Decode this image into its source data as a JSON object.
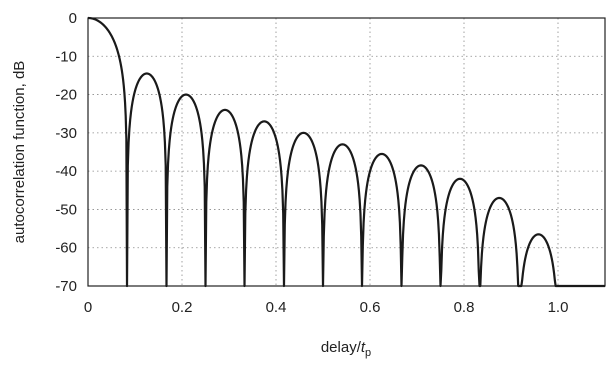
{
  "chart_data": {
    "type": "line",
    "title": "",
    "ylabel": "autocorrelation function, dB",
    "xlabel_main": "delay/",
    "xlabel_var": "t",
    "xlabel_sub": "p",
    "xlim": [
      0,
      1.1
    ],
    "ylim": [
      -70,
      0
    ],
    "xticks": [
      0,
      0.2,
      0.4,
      0.6,
      0.8,
      1.0
    ],
    "xtick_labels": [
      "0",
      "0.2",
      "0.4",
      "0.6",
      "0.8",
      "1.0"
    ],
    "yticks": [
      0,
      -10,
      -20,
      -30,
      -40,
      -50,
      -60,
      -70
    ],
    "ytick_labels": [
      "0",
      "-10",
      "-20",
      "-30",
      "-40",
      "-50",
      "-60",
      "-70"
    ],
    "grid": true,
    "nulls": [
      0.083,
      0.167,
      0.25,
      0.333,
      0.417,
      0.5,
      0.583,
      0.667,
      0.75,
      0.833,
      0.917,
      1.0
    ],
    "sidelobe_peaks": [
      {
        "x": 0.125,
        "y": -14.5
      },
      {
        "x": 0.208,
        "y": -20
      },
      {
        "x": 0.292,
        "y": -24
      },
      {
        "x": 0.375,
        "y": -27
      },
      {
        "x": 0.458,
        "y": -30
      },
      {
        "x": 0.542,
        "y": -33
      },
      {
        "x": 0.625,
        "y": -35.5
      },
      {
        "x": 0.708,
        "y": -38.5
      },
      {
        "x": 0.792,
        "y": -42
      },
      {
        "x": 0.875,
        "y": -47
      },
      {
        "x": 0.958,
        "y": -56.5
      }
    ],
    "floor_segment": {
      "x": [
        1.0,
        1.1
      ],
      "y": -70
    }
  }
}
